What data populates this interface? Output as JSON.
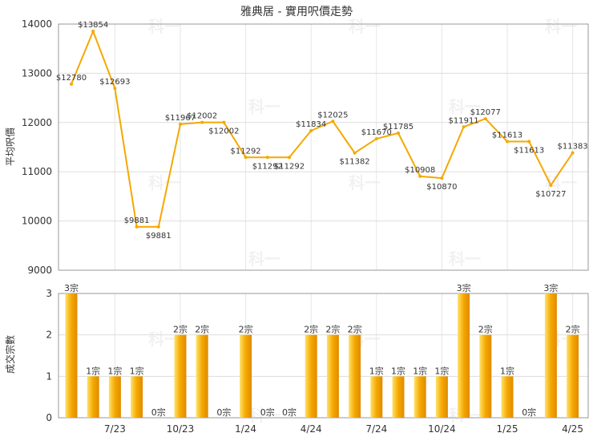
{
  "chart_data": [
    {
      "type": "line",
      "title": "雅典居 - 實用呎價走勢",
      "ylabel": "平均呎價",
      "ylim": [
        9000,
        14000
      ],
      "yticks": [
        9000,
        10000,
        11000,
        12000,
        13000,
        14000
      ],
      "grid": true,
      "color": "#f5a800",
      "label_prefix": "$",
      "values": [
        12780,
        13854,
        12693,
        9881,
        9881,
        11967,
        12002,
        12002,
        11292,
        11292,
        11292,
        11834,
        12025,
        11382,
        11670,
        11785,
        10908,
        10870,
        11911,
        12077,
        11613,
        11613,
        10727,
        11383
      ]
    },
    {
      "type": "bar",
      "ylabel": "成交宗數",
      "ylim": [
        0,
        3
      ],
      "yticks": [
        0,
        1,
        2,
        3
      ],
      "grid": true,
      "color": "#f5a800",
      "label_suffix": "宗",
      "values": [
        3,
        1,
        1,
        1,
        0,
        2,
        2,
        0,
        2,
        0,
        0,
        2,
        2,
        2,
        1,
        1,
        1,
        1,
        3,
        2,
        1,
        0,
        3,
        2
      ],
      "x_tick_labels": [
        "7/23",
        "10/23",
        "1/24",
        "4/24",
        "7/24",
        "10/24",
        "1/25",
        "4/25"
      ]
    }
  ],
  "watermark": "科一"
}
